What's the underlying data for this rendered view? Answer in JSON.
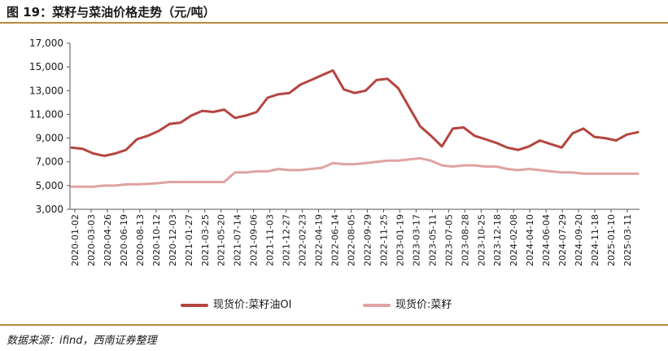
{
  "header": {
    "title": "图 19：菜籽与菜油价格走势（元/吨）"
  },
  "footer": {
    "source": "数据来源：ifind，西南证券整理"
  },
  "chart_data": {
    "type": "line",
    "title": "图 19：菜籽与菜油价格走势（元/吨）",
    "xlabel": "",
    "ylabel": "",
    "ylim": [
      3000,
      17000
    ],
    "yticks": [
      "3,000",
      "5,000",
      "7,000",
      "9,000",
      "11,000",
      "13,000",
      "15,000",
      "17,000"
    ],
    "xtick_labels": [
      "2020-01-02",
      "2020-03-03",
      "2020-04-26",
      "2020-06-19",
      "2020-08-13",
      "2020-10-12",
      "2020-12-03",
      "2021-01-27",
      "2021-03-25",
      "2021-05-20",
      "2021-07-14",
      "2021-09-06",
      "2021-11-03",
      "2021-12-27",
      "2022-02-23",
      "2022-04-19",
      "2022-06-14",
      "2022-08-05",
      "2022-09-29",
      "2022-11-25",
      "2023-01-19",
      "2023-03-17",
      "2023-05-11",
      "2023-07-05",
      "2023-08-28",
      "2023-10-25",
      "2023-12-18",
      "2024-02-08",
      "2024-04-10",
      "2024-06-04",
      "2024-07-29",
      "2024-09-20",
      "2024-11-18",
      "2025-01-10",
      "2025-03-11"
    ],
    "grid": false,
    "legend_position": "bottom",
    "series": [
      {
        "name": "现货价:菜籽油OI",
        "color": "#b5453f",
        "values": [
          8200,
          8100,
          7700,
          7500,
          7700,
          8000,
          8900,
          9200,
          9600,
          10200,
          10300,
          10900,
          11300,
          11200,
          11400,
          10700,
          10900,
          11200,
          12400,
          12700,
          12800,
          13500,
          13900,
          14300,
          14700,
          13100,
          12800,
          13000,
          13900,
          14000,
          13200,
          11600,
          10000,
          9200,
          8300,
          9800,
          9900,
          9200,
          8900,
          8600,
          8200,
          8000,
          8300,
          8800,
          8500,
          8200,
          9400,
          9800,
          9100,
          9000,
          8800,
          9300,
          9500
        ]
      },
      {
        "name": "现货价:菜籽",
        "color": "#e0a3a3",
        "values": [
          4900,
          4900,
          4900,
          5000,
          5000,
          5100,
          5100,
          5150,
          5200,
          5300,
          5300,
          5300,
          5300,
          5300,
          5300,
          6100,
          6100,
          6200,
          6200,
          6400,
          6300,
          6300,
          6400,
          6500,
          6900,
          6800,
          6800,
          6900,
          7000,
          7100,
          7100,
          7200,
          7300,
          7100,
          6700,
          6600,
          6700,
          6700,
          6600,
          6600,
          6400,
          6300,
          6400,
          6300,
          6200,
          6100,
          6100,
          6000,
          6000,
          6000,
          6000,
          6000,
          6000
        ]
      }
    ]
  }
}
